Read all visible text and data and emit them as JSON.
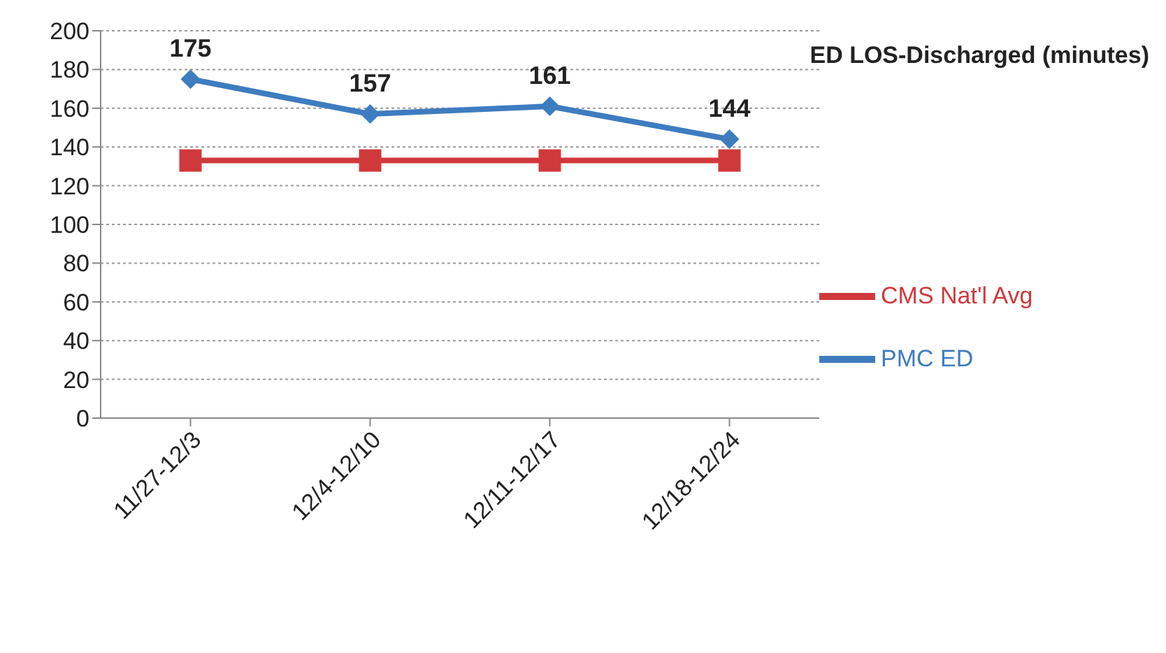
{
  "chart_data": {
    "type": "line",
    "title": "ED LOS-Discharged (minutes)",
    "categories": [
      "11/27-12/3",
      "12/4-12/10",
      "12/11-12/17",
      "12/18-12/24"
    ],
    "series": [
      {
        "name": "PMC ED",
        "color": "#3e7cc0",
        "values": [
          175,
          157,
          161,
          144
        ],
        "marker": "diamond",
        "value_labels": [
          "175",
          "157",
          "161",
          "144"
        ]
      },
      {
        "name": "CMS Nat'l Avg",
        "color": "#d0393c",
        "values": [
          133,
          133,
          133,
          133
        ],
        "marker": "square"
      }
    ],
    "ylim": [
      0,
      200
    ],
    "yticks": [
      0,
      20,
      40,
      60,
      80,
      100,
      120,
      140,
      160,
      180,
      200
    ],
    "grid": "y",
    "legend": "right"
  }
}
